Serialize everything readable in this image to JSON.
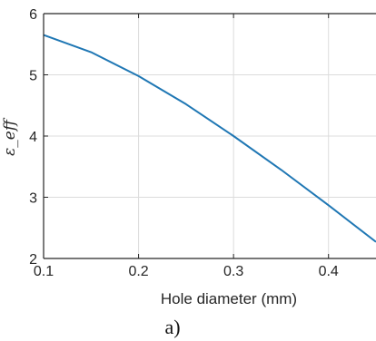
{
  "chart_data": {
    "type": "line",
    "xlabel": "Hole diameter (mm)",
    "ylabel": "ε_eff",
    "panel_label": "a)",
    "xlim": [
      0.1,
      0.45
    ],
    "ylim": [
      2,
      6
    ],
    "xticks": [
      0.1,
      0.2,
      0.3,
      0.4
    ],
    "xtick_labels": [
      "0.1",
      "0.2",
      "0.3",
      "0.4"
    ],
    "yticks": [
      2,
      3,
      4,
      5,
      6
    ],
    "ytick_labels": [
      "2",
      "3",
      "4",
      "5",
      "6"
    ],
    "grid": true,
    "series": [
      {
        "color": "#1f77b4",
        "x": [
          0.1,
          0.15,
          0.2,
          0.25,
          0.3,
          0.35,
          0.4,
          0.45
        ],
        "y": [
          5.65,
          5.37,
          4.98,
          4.52,
          4.0,
          3.45,
          2.87,
          2.27
        ]
      }
    ]
  }
}
